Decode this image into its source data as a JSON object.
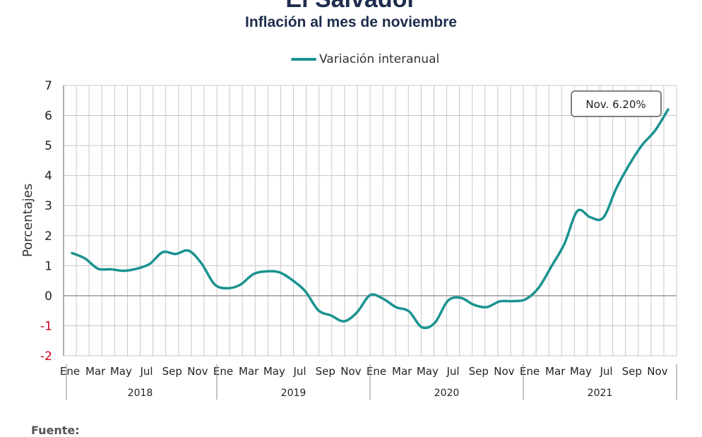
{
  "header": {
    "title": "El Salvador",
    "subtitle": "Inflación al mes de noviembre"
  },
  "footer": {
    "source_label": "Fuente:"
  },
  "colors": {
    "line": "#1a9390",
    "grid": "#c8c8c8",
    "negative_tick": "#d0021b",
    "annotation_border": "#808080"
  },
  "chart_data": {
    "type": "line",
    "title": "Inflación al mes de noviembre",
    "ylabel": "Porcentajes",
    "xlabel": "",
    "ylim": [
      -2,
      7
    ],
    "yticks": [
      -2,
      -1,
      0,
      1,
      2,
      3,
      4,
      5,
      6,
      7
    ],
    "grid": true,
    "legend_position": "top-center",
    "month_tick_labels": [
      "Ene",
      "Mar",
      "May",
      "Jul",
      "Sep",
      "Nov"
    ],
    "years": [
      "2018",
      "2019",
      "2020",
      "2021"
    ],
    "series": [
      {
        "name": "Variación interanual",
        "values": [
          1.42,
          1.24,
          0.9,
          0.88,
          0.83,
          0.9,
          1.06,
          1.45,
          1.39,
          1.5,
          1.07,
          0.38,
          0.25,
          0.37,
          0.72,
          0.81,
          0.78,
          0.52,
          0.15,
          -0.48,
          -0.66,
          -0.85,
          -0.55,
          0.02,
          -0.1,
          -0.38,
          -0.52,
          -1.05,
          -0.9,
          -0.17,
          -0.07,
          -0.3,
          -0.38,
          -0.19,
          -0.18,
          -0.12,
          0.26,
          0.98,
          1.73,
          2.82,
          2.61,
          2.6,
          3.57,
          4.36,
          5.02,
          5.5,
          6.2
        ]
      }
    ],
    "annotation": {
      "label": "Nov. 6.20%",
      "target": "2021-11",
      "value": 6.2
    }
  }
}
